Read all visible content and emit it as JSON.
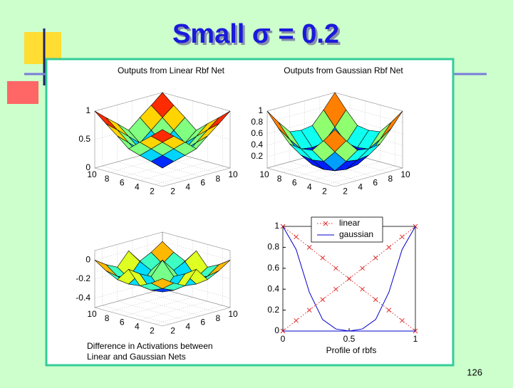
{
  "title": "Small σ = 0.2",
  "page_number": "126",
  "chart_data": [
    {
      "type": "surface",
      "title": "Outputs from Linear Rbf Net",
      "x": [
        1,
        2.5,
        4,
        5.5,
        7,
        8.5,
        10
      ],
      "y": [
        1,
        2.5,
        4,
        5.5,
        7,
        8.5,
        10
      ],
      "z": [
        [
          1,
          0.83,
          0.67,
          0.5,
          0.67,
          0.83,
          1
        ],
        [
          0.83,
          0.67,
          0.5,
          0.33,
          0.5,
          0.67,
          0.83
        ],
        [
          0.67,
          0.5,
          0.33,
          0.17,
          0.33,
          0.5,
          0.67
        ],
        [
          0.5,
          0.33,
          0.17,
          0,
          0.17,
          0.33,
          0.5
        ],
        [
          0.67,
          0.5,
          0.33,
          0.17,
          0.33,
          0.5,
          0.67
        ],
        [
          0.83,
          0.67,
          0.5,
          0.33,
          0.5,
          0.67,
          0.83
        ],
        [
          1,
          0.83,
          0.67,
          0.5,
          0.67,
          0.83,
          1
        ]
      ],
      "xlim": [
        1,
        10
      ],
      "ylim": [
        1,
        10
      ],
      "zlim": [
        0,
        1
      ],
      "xticks": [
        2,
        4,
        6,
        8,
        10
      ],
      "yticks": [
        2,
        4,
        6,
        8,
        10
      ],
      "zticks": [
        0,
        0.5,
        1
      ],
      "grid": true
    },
    {
      "type": "surface",
      "title": "Outputs from Gaussian Rbf Net",
      "x": [
        1,
        2.5,
        4,
        5.5,
        7,
        8.5,
        10
      ],
      "y": [
        1,
        2.5,
        4,
        5.5,
        7,
        8.5,
        10
      ],
      "z": [
        [
          1,
          0.75,
          0.53,
          0.5,
          0.53,
          0.75,
          1
        ],
        [
          0.75,
          0.5,
          0.28,
          0.25,
          0.28,
          0.5,
          0.75
        ],
        [
          0.53,
          0.28,
          0.06,
          0.03,
          0.06,
          0.28,
          0.53
        ],
        [
          0.5,
          0.25,
          0.03,
          0,
          0.03,
          0.25,
          0.5
        ],
        [
          0.53,
          0.28,
          0.06,
          0.03,
          0.06,
          0.28,
          0.53
        ],
        [
          0.75,
          0.5,
          0.28,
          0.25,
          0.28,
          0.5,
          0.75
        ],
        [
          1,
          0.75,
          0.53,
          0.5,
          0.53,
          0.75,
          1
        ]
      ],
      "xlim": [
        1,
        10
      ],
      "ylim": [
        1,
        10
      ],
      "zlim": [
        0,
        1
      ],
      "xticks": [
        2,
        4,
        6,
        8,
        10
      ],
      "yticks": [
        2,
        4,
        6,
        8,
        10
      ],
      "zticks": [
        0.2,
        0.4,
        0.6,
        0.8,
        1
      ],
      "grid": true
    },
    {
      "type": "surface",
      "title": [
        "Difference in Activations between",
        "Linear and Gaussian Nets"
      ],
      "x": [
        1,
        2.5,
        4,
        5.5,
        7,
        8.5,
        10
      ],
      "y": [
        1,
        2.5,
        4,
        5.5,
        7,
        8.5,
        10
      ],
      "z": [
        [
          0,
          -0.08,
          -0.14,
          0,
          -0.14,
          -0.08,
          0
        ],
        [
          -0.08,
          -0.17,
          -0.22,
          -0.08,
          -0.22,
          -0.17,
          -0.08
        ],
        [
          -0.14,
          -0.22,
          -0.27,
          -0.14,
          -0.27,
          -0.22,
          -0.14
        ],
        [
          0,
          -0.08,
          -0.14,
          0,
          -0.14,
          -0.08,
          0
        ],
        [
          -0.14,
          -0.22,
          -0.27,
          -0.14,
          -0.27,
          -0.22,
          -0.14
        ],
        [
          -0.08,
          -0.17,
          -0.22,
          -0.08,
          -0.22,
          -0.17,
          -0.08
        ],
        [
          0,
          -0.08,
          -0.14,
          0,
          -0.14,
          -0.08,
          0
        ]
      ],
      "xlim": [
        1,
        10
      ],
      "ylim": [
        1,
        10
      ],
      "zlim": [
        -0.5,
        0.1
      ],
      "xticks": [
        2,
        4,
        6,
        8,
        10
      ],
      "yticks": [
        2,
        4,
        6,
        8,
        10
      ],
      "zticks": [
        -0.4,
        -0.2,
        0
      ],
      "grid": true
    },
    {
      "type": "line",
      "xlabel": "Profile of rbfs",
      "x": [
        0,
        0.1,
        0.2,
        0.3,
        0.4,
        0.5,
        0.6,
        0.7,
        0.8,
        0.9,
        1
      ],
      "series": [
        {
          "name": "linear",
          "color": "#e03030",
          "marker": "x",
          "dash": "dotted",
          "values": [
            [
              1,
              0.9,
              0.8,
              0.7,
              0.6,
              0.5,
              0.4,
              0.3,
              0.2,
              0.1,
              0
            ],
            [
              0,
              0.1,
              0.2,
              0.3,
              0.4,
              0.5,
              0.6,
              0.7,
              0.8,
              0.9,
              1
            ]
          ]
        },
        {
          "name": "gaussian",
          "color": "#0000cc",
          "values": [
            [
              1,
              0.78,
              0.37,
              0.11,
              0.02,
              0,
              0,
              0,
              0,
              0,
              0
            ],
            [
              0,
              0,
              0,
              0,
              0,
              0,
              0.02,
              0.11,
              0.37,
              0.78,
              1
            ]
          ]
        }
      ],
      "xlim": [
        0,
        1
      ],
      "ylim": [
        0,
        1
      ],
      "xticks": [
        0,
        0.5,
        1
      ],
      "yticks": [
        0,
        0.2,
        0.4,
        0.6,
        0.8,
        1
      ],
      "legend": "top"
    }
  ]
}
